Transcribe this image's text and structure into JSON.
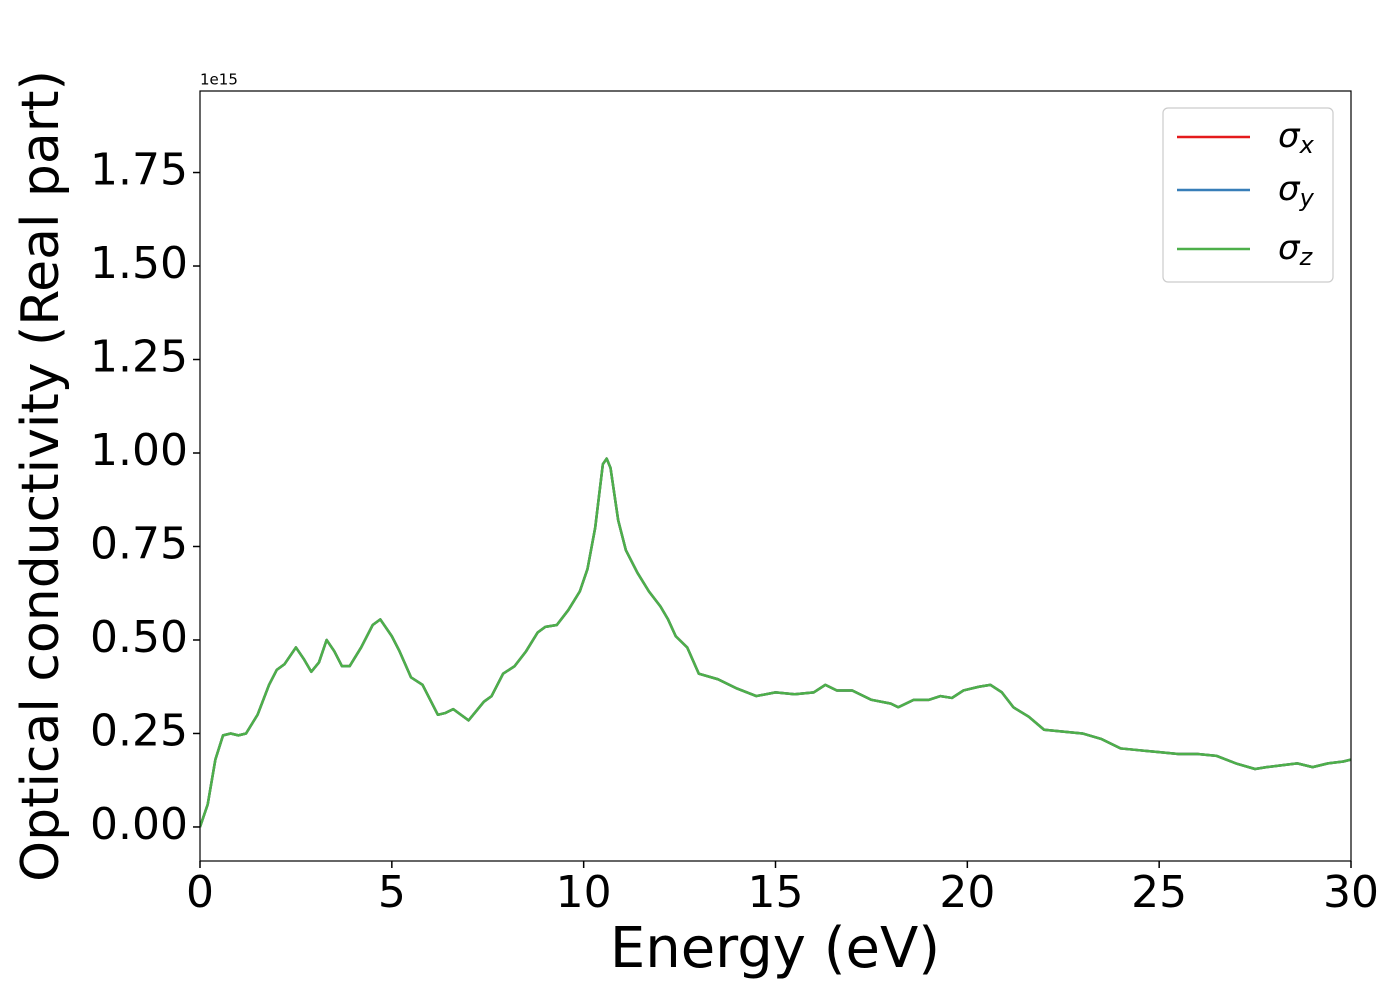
{
  "chart_data": {
    "type": "line",
    "xlabel": "Energy (eV)",
    "ylabel": "Optical conductivity (Real part)",
    "offset_text": "1e15",
    "x": [
      0,
      0.2,
      0.4,
      0.6,
      0.8,
      1.0,
      1.2,
      1.5,
      1.8,
      2.0,
      2.2,
      2.5,
      2.7,
      2.9,
      3.1,
      3.3,
      3.5,
      3.7,
      3.9,
      4.2,
      4.5,
      4.7,
      5.0,
      5.2,
      5.5,
      5.8,
      6.0,
      6.2,
      6.4,
      6.6,
      6.8,
      7.0,
      7.2,
      7.4,
      7.6,
      7.9,
      8.2,
      8.5,
      8.8,
      9.0,
      9.3,
      9.6,
      9.9,
      10.1,
      10.3,
      10.5,
      10.6,
      10.7,
      10.9,
      11.1,
      11.4,
      11.7,
      12.0,
      12.2,
      12.4,
      12.7,
      13.0,
      13.5,
      14.0,
      14.5,
      15.0,
      15.5,
      16.0,
      16.3,
      16.6,
      17.0,
      17.5,
      18.0,
      18.2,
      18.6,
      19.0,
      19.3,
      19.6,
      19.9,
      20.3,
      20.6,
      20.9,
      21.2,
      21.6,
      22.0,
      22.5,
      23.0,
      23.5,
      24.0,
      24.5,
      25.0,
      25.5,
      26.0,
      26.5,
      27.0,
      27.5,
      27.8,
      28.2,
      28.6,
      29.0,
      29.4,
      29.8,
      30.0
    ],
    "series": [
      {
        "name": "σx",
        "color": "#e41a1c",
        "values": [
          0.0,
          0.06,
          0.18,
          0.245,
          0.25,
          0.245,
          0.25,
          0.3,
          0.38,
          0.42,
          0.435,
          0.48,
          0.45,
          0.415,
          0.44,
          0.5,
          0.47,
          0.43,
          0.43,
          0.48,
          0.54,
          0.555,
          0.51,
          0.47,
          0.4,
          0.38,
          0.34,
          0.3,
          0.305,
          0.315,
          0.3,
          0.285,
          0.31,
          0.335,
          0.35,
          0.41,
          0.43,
          0.47,
          0.52,
          0.535,
          0.54,
          0.58,
          0.63,
          0.69,
          0.8,
          0.97,
          0.985,
          0.96,
          0.82,
          0.74,
          0.68,
          0.63,
          0.59,
          0.555,
          0.51,
          0.48,
          0.41,
          0.395,
          0.37,
          0.35,
          0.36,
          0.355,
          0.36,
          0.38,
          0.365,
          0.365,
          0.34,
          0.33,
          0.32,
          0.34,
          0.34,
          0.35,
          0.345,
          0.365,
          0.375,
          0.38,
          0.36,
          0.32,
          0.295,
          0.26,
          0.255,
          0.25,
          0.235,
          0.21,
          0.205,
          0.2,
          0.195,
          0.195,
          0.19,
          0.17,
          0.155,
          0.16,
          0.165,
          0.17,
          0.16,
          0.17,
          0.175,
          0.18
        ]
      },
      {
        "name": "σy",
        "color": "#377eb8",
        "values": [
          0.0,
          0.06,
          0.18,
          0.245,
          0.25,
          0.245,
          0.25,
          0.3,
          0.38,
          0.42,
          0.435,
          0.48,
          0.45,
          0.415,
          0.44,
          0.5,
          0.47,
          0.43,
          0.43,
          0.48,
          0.54,
          0.555,
          0.51,
          0.47,
          0.4,
          0.38,
          0.34,
          0.3,
          0.305,
          0.315,
          0.3,
          0.285,
          0.31,
          0.335,
          0.35,
          0.41,
          0.43,
          0.47,
          0.52,
          0.535,
          0.54,
          0.58,
          0.63,
          0.69,
          0.8,
          0.97,
          0.985,
          0.96,
          0.82,
          0.74,
          0.68,
          0.63,
          0.59,
          0.555,
          0.51,
          0.48,
          0.41,
          0.395,
          0.37,
          0.35,
          0.36,
          0.355,
          0.36,
          0.38,
          0.365,
          0.365,
          0.34,
          0.33,
          0.32,
          0.34,
          0.34,
          0.35,
          0.345,
          0.365,
          0.375,
          0.38,
          0.36,
          0.32,
          0.295,
          0.26,
          0.255,
          0.25,
          0.235,
          0.21,
          0.205,
          0.2,
          0.195,
          0.195,
          0.19,
          0.17,
          0.155,
          0.16,
          0.165,
          0.17,
          0.16,
          0.17,
          0.175,
          0.18
        ]
      },
      {
        "name": "σz",
        "color": "#4daf4a",
        "values": [
          0.0,
          0.06,
          0.18,
          0.245,
          0.25,
          0.245,
          0.25,
          0.3,
          0.38,
          0.42,
          0.435,
          0.48,
          0.45,
          0.415,
          0.44,
          0.5,
          0.47,
          0.43,
          0.43,
          0.48,
          0.54,
          0.555,
          0.51,
          0.47,
          0.4,
          0.38,
          0.34,
          0.3,
          0.305,
          0.315,
          0.3,
          0.285,
          0.31,
          0.335,
          0.35,
          0.41,
          0.43,
          0.47,
          0.52,
          0.535,
          0.54,
          0.58,
          0.63,
          0.69,
          0.8,
          0.97,
          0.985,
          0.96,
          0.82,
          0.74,
          0.68,
          0.63,
          0.59,
          0.555,
          0.51,
          0.48,
          0.41,
          0.395,
          0.37,
          0.35,
          0.36,
          0.355,
          0.36,
          0.38,
          0.365,
          0.365,
          0.34,
          0.33,
          0.32,
          0.34,
          0.34,
          0.35,
          0.345,
          0.365,
          0.375,
          0.38,
          0.36,
          0.32,
          0.295,
          0.26,
          0.255,
          0.25,
          0.235,
          0.21,
          0.205,
          0.2,
          0.195,
          0.195,
          0.19,
          0.17,
          0.155,
          0.16,
          0.165,
          0.17,
          0.16,
          0.17,
          0.175,
          0.18
        ]
      }
    ],
    "xlim": [
      0,
      30
    ],
    "xticks": [
      0,
      5,
      10,
      15,
      20,
      25,
      30
    ],
    "ylim": [
      -0.091,
      1.968
    ],
    "yticks": [
      {
        "value": 0,
        "label": "0.00"
      },
      {
        "value": 0.25,
        "label": "0.25"
      },
      {
        "value": 0.5,
        "label": "0.50"
      },
      {
        "value": 0.75,
        "label": "0.75"
      },
      {
        "value": 1,
        "label": "1.00"
      },
      {
        "value": 1.25,
        "label": "1.25"
      },
      {
        "value": 1.5,
        "label": "1.50"
      },
      {
        "value": 1.75,
        "label": "1.75"
      }
    ],
    "legend": "upper right",
    "grid": false
  }
}
